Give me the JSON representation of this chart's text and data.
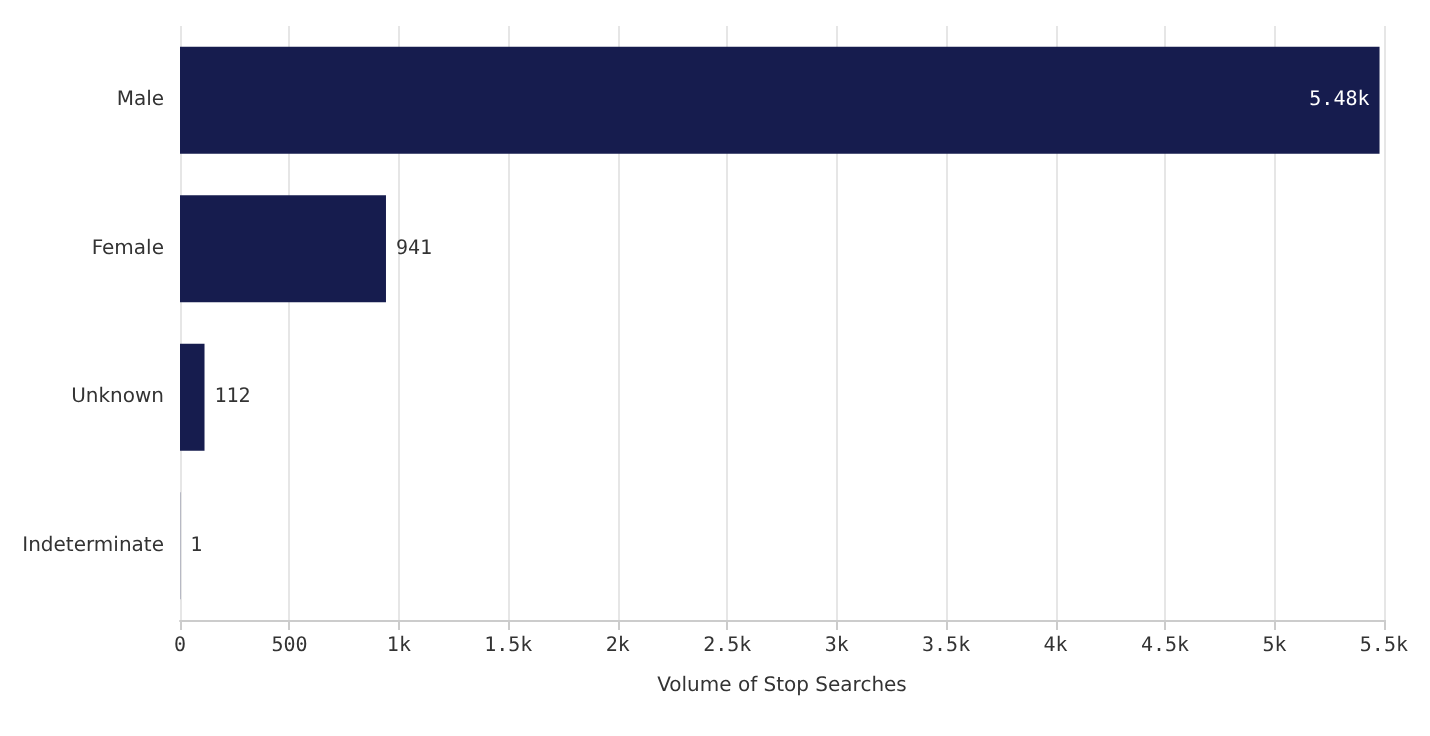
{
  "chart_data": {
    "type": "bar",
    "orientation": "horizontal",
    "categories": [
      "Male",
      "Female",
      "Unknown",
      "Indeterminate"
    ],
    "values": [
      5480,
      941,
      112,
      1
    ],
    "value_labels": [
      "5.48k",
      "941",
      "112",
      "1"
    ],
    "color": "#161c4e",
    "xlabel": "Volume of Stop Searches",
    "xlim": [
      0,
      5500
    ],
    "xticks": [
      0,
      500,
      {
        "value": 1000,
        "label": "1k"
      },
      {
        "value": 1500,
        "label": "1.5k"
      },
      {
        "value": 2000,
        "label": "2k"
      },
      {
        "value": 2500,
        "label": "2.5k"
      },
      {
        "value": 3000,
        "label": "3k"
      },
      {
        "value": 3500,
        "label": "3.5k"
      },
      {
        "value": 4000,
        "label": "4k"
      },
      {
        "value": 4500,
        "label": "4.5k"
      },
      {
        "value": 5000,
        "label": "5k"
      },
      {
        "value": 5500,
        "label": "5.5k"
      }
    ],
    "grid": "x"
  }
}
